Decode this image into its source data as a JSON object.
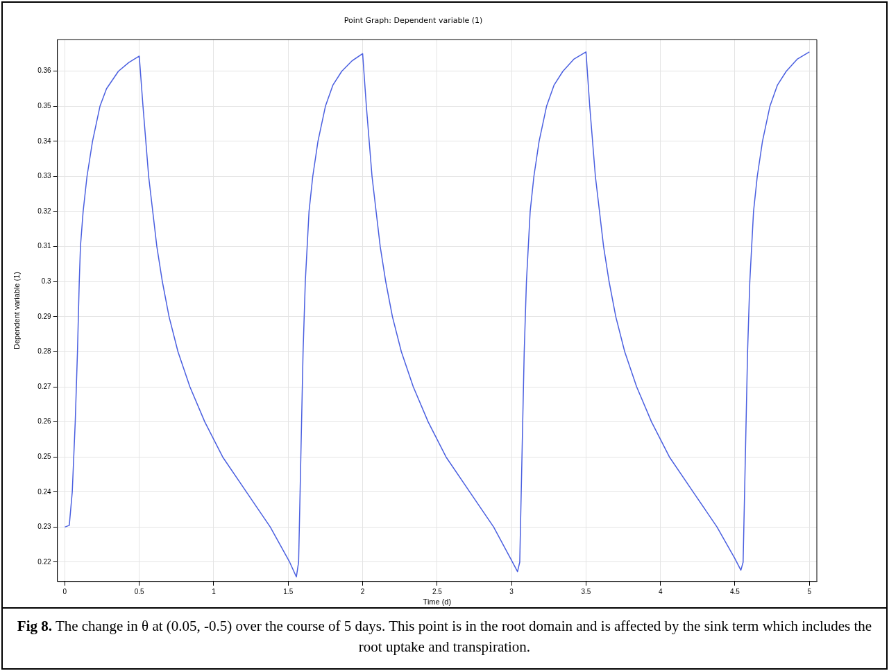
{
  "chart_data": {
    "type": "line",
    "title": "Point Graph: Dependent variable (1)",
    "xlabel": "Time (d)",
    "ylabel": "Dependent variable (1)",
    "xlim": [
      -0.05,
      5.05
    ],
    "ylim": [
      0.2145,
      0.369
    ],
    "xticks": [
      0,
      0.5,
      1,
      1.5,
      2,
      2.5,
      3,
      3.5,
      4,
      4.5,
      5
    ],
    "yticks": [
      0.22,
      0.23,
      0.24,
      0.25,
      0.26,
      0.27,
      0.28,
      0.29,
      0.3,
      0.31,
      0.32,
      0.33,
      0.34,
      0.35,
      0.36
    ],
    "grid": true,
    "legend": false,
    "marker": "none",
    "line_style": "solid",
    "annotations": [
      "Fig 8.",
      "The change in θ at (0.05, -0.5) over the course of 5 days. This point is in the root domain and is affected by the sink term which includes the root uptake and transpiration."
    ],
    "series": [
      {
        "color": "#4a5fe0",
        "x": [
          0,
          0.03,
          0.05,
          0.07,
          0.085,
          0.097,
          0.105,
          0.123,
          0.149,
          0.186,
          0.236,
          0.28,
          0.36,
          0.43,
          0.5,
          0.525,
          0.563,
          0.618,
          0.655,
          0.7,
          0.76,
          0.84,
          0.94,
          1.06,
          1.22,
          1.38,
          1.51,
          1.555,
          1.57,
          1.585,
          1.6,
          1.615,
          1.64,
          1.665,
          1.7,
          1.75,
          1.8,
          1.86,
          1.93,
          2.0,
          2.025,
          2.063,
          2.118,
          2.155,
          2.2,
          2.26,
          2.34,
          2.44,
          2.56,
          2.72,
          2.88,
          3.0,
          3.04,
          3.055,
          3.07,
          3.085,
          3.1,
          3.125,
          3.15,
          3.185,
          3.235,
          3.285,
          3.345,
          3.42,
          3.5,
          3.525,
          3.563,
          3.618,
          3.655,
          3.7,
          3.76,
          3.84,
          3.94,
          4.06,
          4.22,
          4.38,
          4.5,
          4.54,
          4.555,
          4.57,
          4.585,
          4.6,
          4.625,
          4.65,
          4.685,
          4.735,
          4.785,
          4.845,
          4.92,
          5.0
        ],
        "values": [
          0.23,
          0.2305,
          0.24,
          0.26,
          0.28,
          0.3,
          0.31,
          0.32,
          0.33,
          0.34,
          0.35,
          0.355,
          0.36,
          0.3625,
          0.3643,
          0.35,
          0.33,
          0.31,
          0.3,
          0.29,
          0.28,
          0.27,
          0.26,
          0.25,
          0.24,
          0.23,
          0.22,
          0.2158,
          0.22,
          0.25,
          0.28,
          0.3,
          0.32,
          0.33,
          0.34,
          0.35,
          0.356,
          0.36,
          0.363,
          0.365,
          0.35,
          0.33,
          0.31,
          0.3,
          0.29,
          0.28,
          0.27,
          0.26,
          0.25,
          0.24,
          0.23,
          0.2205,
          0.2173,
          0.22,
          0.25,
          0.28,
          0.3,
          0.32,
          0.33,
          0.34,
          0.35,
          0.356,
          0.36,
          0.3635,
          0.3655,
          0.35,
          0.33,
          0.31,
          0.3,
          0.29,
          0.28,
          0.27,
          0.26,
          0.25,
          0.24,
          0.23,
          0.221,
          0.2177,
          0.22,
          0.25,
          0.28,
          0.3,
          0.32,
          0.33,
          0.34,
          0.35,
          0.356,
          0.36,
          0.3635,
          0.3655
        ]
      }
    ]
  }
}
